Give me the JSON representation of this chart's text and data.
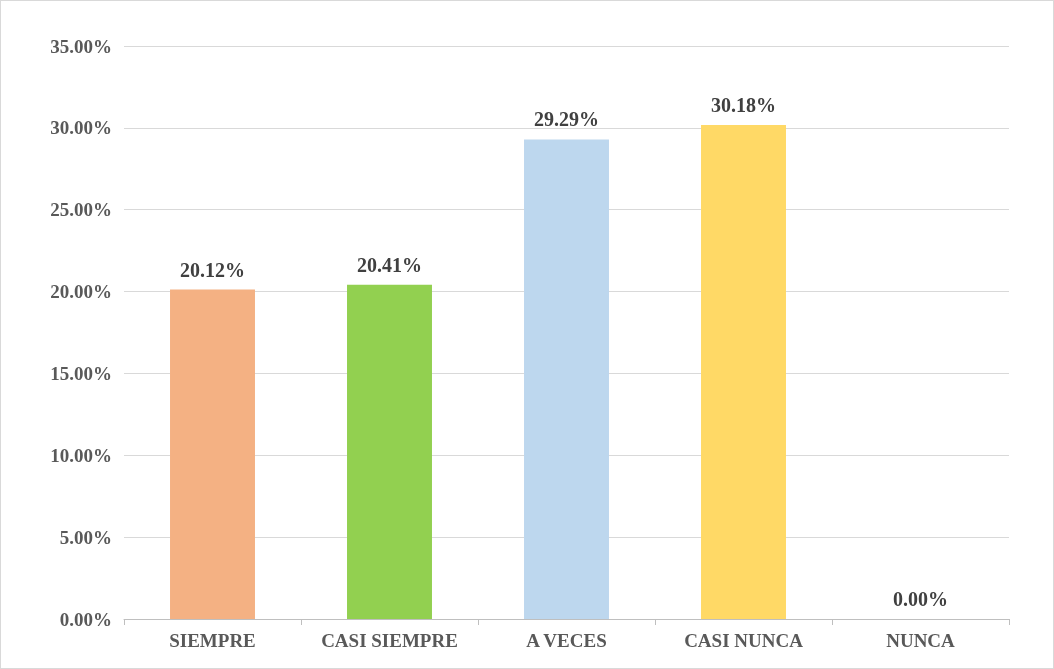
{
  "chart_data": {
    "type": "bar",
    "categories": [
      "SIEMPRE",
      "CASI SIEMPRE",
      "A VECES",
      "CASI NUNCA",
      "NUNCA"
    ],
    "values": [
      20.12,
      20.41,
      29.29,
      30.18,
      0
    ],
    "colors": [
      "#f4b183",
      "#92d050",
      "#bdd7ee",
      "#ffd966",
      "#a5a5a5"
    ],
    "value_labels": [
      "20.12%",
      "20.41%",
      "29.29%",
      "30.18%",
      "0.00%"
    ],
    "ylim": [
      0,
      35
    ],
    "yticks": [
      {
        "value": 0,
        "label": "0.00%"
      },
      {
        "value": 5,
        "label": "5.00%"
      },
      {
        "value": 10,
        "label": "10.00%"
      },
      {
        "value": 15,
        "label": "15.00%"
      },
      {
        "value": 20,
        "label": "20.00%"
      },
      {
        "value": 25,
        "label": "25.00%"
      },
      {
        "value": 30,
        "label": "30.00%"
      },
      {
        "value": 35,
        "label": "35.00%"
      }
    ],
    "grid": "y"
  }
}
